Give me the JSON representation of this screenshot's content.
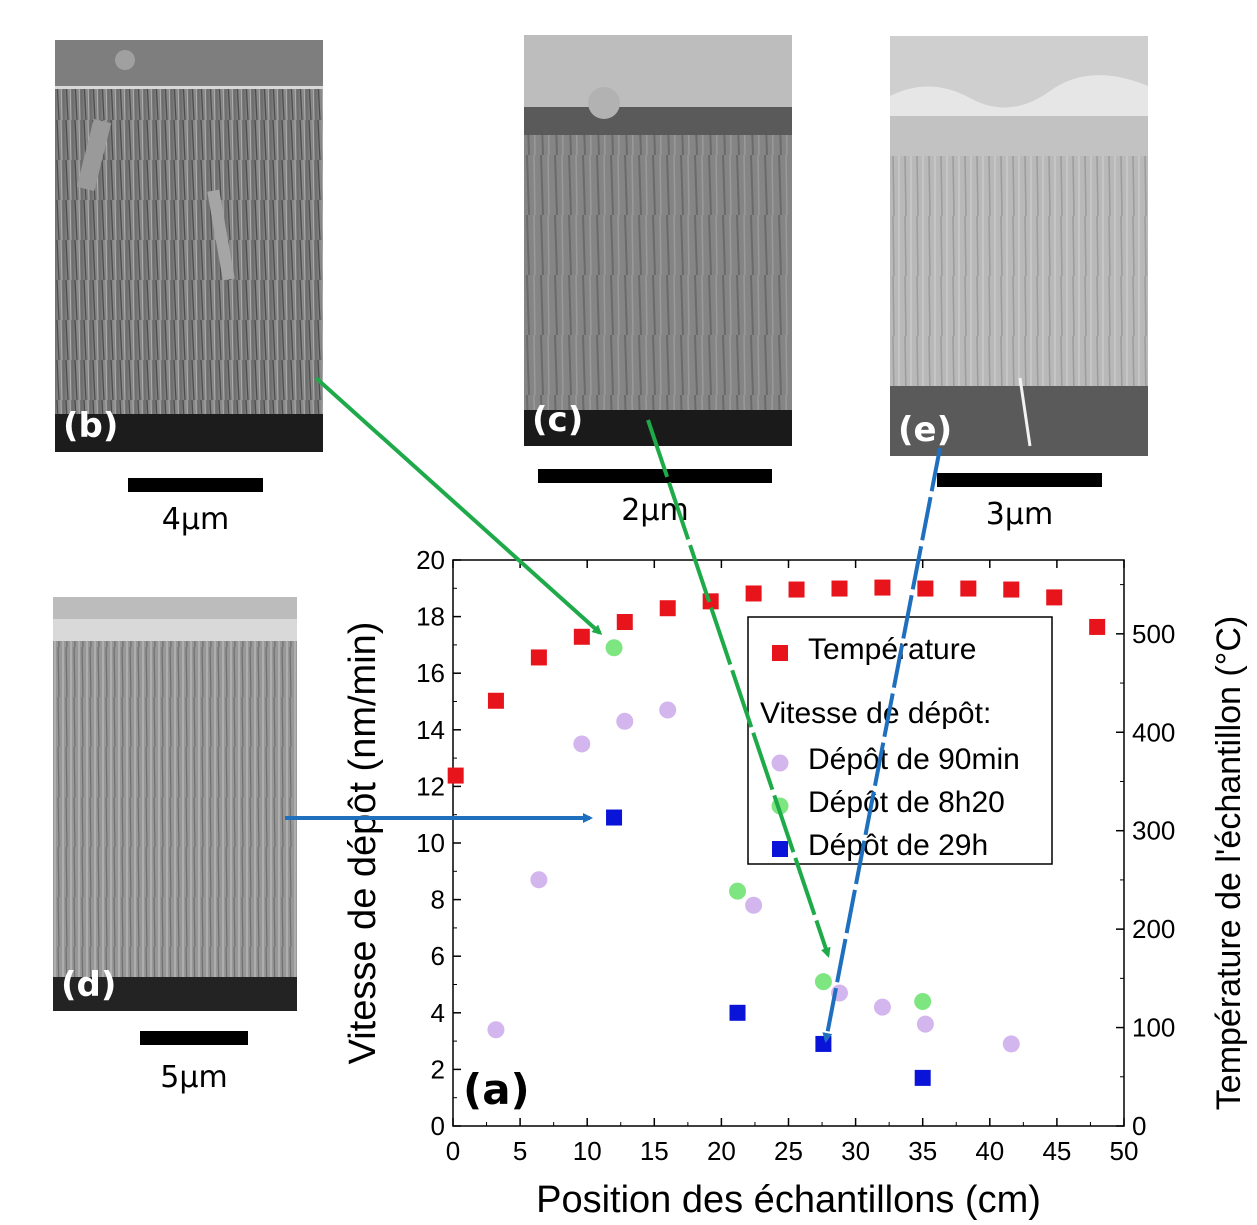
{
  "panels": {
    "b": {
      "label": "(b)",
      "scale": "4µm"
    },
    "c": {
      "label": "(c)",
      "scale": "2µm"
    },
    "e": {
      "label": "(e)",
      "scale": "3µm"
    },
    "d": {
      "label": "(d)",
      "scale": "5µm"
    }
  },
  "chart_data": {
    "type": "scatter",
    "panel_label": "(a)",
    "xlabel": "Position des échantillons (cm)",
    "ylabel": "Vitesse de dépôt (nm/min)",
    "y2label": "Température de l'échantillon (°C)",
    "xlim": [
      0,
      50
    ],
    "ylim": [
      0,
      20
    ],
    "y2lim": [
      0,
      575
    ],
    "xticks": [
      0,
      5,
      10,
      15,
      20,
      25,
      30,
      35,
      40,
      45,
      50
    ],
    "yticks": [
      0,
      2,
      4,
      6,
      8,
      10,
      12,
      14,
      16,
      18,
      20
    ],
    "y2ticks": [
      0,
      100,
      200,
      300,
      400,
      500
    ],
    "legend": {
      "position": "top-right",
      "header": "Vitesse de dépôt:"
    },
    "series": [
      {
        "name": "Température",
        "axis": "right",
        "marker": "square",
        "color": "#e8141c",
        "x": [
          0.2,
          3.2,
          6.4,
          9.6,
          12.8,
          16.0,
          19.2,
          22.4,
          25.6,
          28.8,
          32.0,
          35.2,
          38.4,
          41.6,
          44.8,
          48.0
        ],
        "y": [
          356,
          432,
          476,
          497,
          512,
          526,
          533,
          541,
          545,
          546,
          547,
          546,
          546,
          545,
          537,
          507
        ]
      },
      {
        "name": "Dépôt de 90min",
        "axis": "left",
        "marker": "circle",
        "color": "#d3b6ee",
        "x": [
          3.2,
          6.4,
          9.6,
          12.8,
          16.0,
          22.4,
          28.8,
          32.0,
          35.2,
          41.6
        ],
        "y": [
          3.4,
          8.7,
          13.5,
          14.3,
          14.7,
          7.8,
          4.7,
          4.2,
          3.6,
          2.9
        ]
      },
      {
        "name": "Dépôt de 8h20",
        "axis": "left",
        "marker": "circle",
        "color": "#7ee681",
        "x": [
          12.0,
          21.2,
          27.6,
          35.0
        ],
        "y": [
          16.9,
          8.3,
          5.1,
          4.4
        ]
      },
      {
        "name": "Dépôt de 29h",
        "axis": "left",
        "marker": "square",
        "color": "#0a14d8",
        "x": [
          12.0,
          21.2,
          27.6,
          35.0
        ],
        "y": [
          10.9,
          4.0,
          2.9,
          1.7
        ]
      }
    ]
  },
  "colors": {
    "green_arrow": "#1faa4a",
    "blue_arrow": "#1f6fbf"
  }
}
